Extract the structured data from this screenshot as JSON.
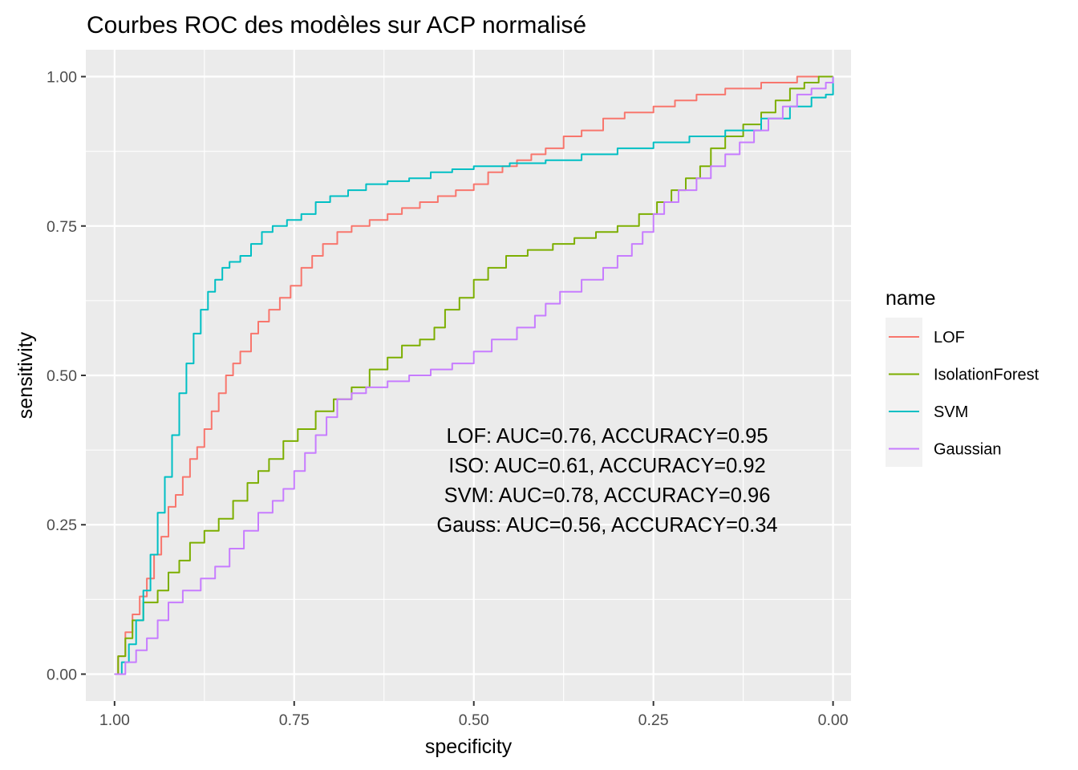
{
  "chart_data": {
    "type": "line",
    "title": "Courbes ROC des modèles sur ACP normalisé",
    "xlabel": "specificity",
    "ylabel": "sensitivity",
    "x_reversed": true,
    "xlim": [
      1.04,
      -0.025
    ],
    "ylim": [
      -0.045,
      1.045
    ],
    "x_ticks": [
      1.0,
      0.75,
      0.5,
      0.25,
      0.0
    ],
    "x_tick_labels": [
      "1.00",
      "0.75",
      "0.50",
      "0.25",
      "0.00"
    ],
    "y_ticks": [
      0.0,
      0.25,
      0.5,
      0.75,
      1.0
    ],
    "y_tick_labels": [
      "0.00",
      "0.25",
      "0.50",
      "0.75",
      "1.00"
    ],
    "grid": true,
    "legend": {
      "title": "name",
      "position": "right"
    },
    "annotations": [
      "LOF: AUC=0.76, ACCURACY=0.95",
      "ISO: AUC=0.61, ACCURACY=0.92",
      "SVM: AUC=0.78, ACCURACY=0.96",
      "Gauss: AUC=0.56, ACCURACY=0.34"
    ],
    "series": [
      {
        "name": "LOF",
        "color": "#F8766D",
        "points": [
          [
            1.0,
            0.0
          ],
          [
            0.995,
            0.03
          ],
          [
            0.985,
            0.07
          ],
          [
            0.975,
            0.1
          ],
          [
            0.965,
            0.13
          ],
          [
            0.955,
            0.16
          ],
          [
            0.945,
            0.2
          ],
          [
            0.935,
            0.23
          ],
          [
            0.925,
            0.28
          ],
          [
            0.915,
            0.3
          ],
          [
            0.905,
            0.33
          ],
          [
            0.895,
            0.36
          ],
          [
            0.885,
            0.38
          ],
          [
            0.875,
            0.41
          ],
          [
            0.865,
            0.44
          ],
          [
            0.855,
            0.47
          ],
          [
            0.845,
            0.5
          ],
          [
            0.835,
            0.52
          ],
          [
            0.825,
            0.54
          ],
          [
            0.81,
            0.57
          ],
          [
            0.8,
            0.59
          ],
          [
            0.785,
            0.61
          ],
          [
            0.77,
            0.63
          ],
          [
            0.755,
            0.65
          ],
          [
            0.74,
            0.68
          ],
          [
            0.725,
            0.7
          ],
          [
            0.71,
            0.72
          ],
          [
            0.69,
            0.74
          ],
          [
            0.67,
            0.75
          ],
          [
            0.645,
            0.76
          ],
          [
            0.62,
            0.77
          ],
          [
            0.6,
            0.78
          ],
          [
            0.575,
            0.79
          ],
          [
            0.55,
            0.8
          ],
          [
            0.525,
            0.81
          ],
          [
            0.5,
            0.82
          ],
          [
            0.48,
            0.84
          ],
          [
            0.46,
            0.85
          ],
          [
            0.44,
            0.86
          ],
          [
            0.42,
            0.87
          ],
          [
            0.4,
            0.88
          ],
          [
            0.375,
            0.9
          ],
          [
            0.35,
            0.91
          ],
          [
            0.32,
            0.93
          ],
          [
            0.29,
            0.94
          ],
          [
            0.25,
            0.95
          ],
          [
            0.22,
            0.96
          ],
          [
            0.19,
            0.97
          ],
          [
            0.15,
            0.98
          ],
          [
            0.1,
            0.99
          ],
          [
            0.05,
            1.0
          ],
          [
            0.0,
            1.0
          ]
        ]
      },
      {
        "name": "IsolationForest",
        "color": "#7CAE00",
        "points": [
          [
            1.0,
            0.0
          ],
          [
            0.995,
            0.03
          ],
          [
            0.985,
            0.06
          ],
          [
            0.975,
            0.09
          ],
          [
            0.96,
            0.12
          ],
          [
            0.94,
            0.14
          ],
          [
            0.925,
            0.17
          ],
          [
            0.91,
            0.19
          ],
          [
            0.895,
            0.22
          ],
          [
            0.875,
            0.24
          ],
          [
            0.855,
            0.26
          ],
          [
            0.835,
            0.29
          ],
          [
            0.815,
            0.32
          ],
          [
            0.8,
            0.34
          ],
          [
            0.785,
            0.36
          ],
          [
            0.765,
            0.39
          ],
          [
            0.745,
            0.41
          ],
          [
            0.72,
            0.44
          ],
          [
            0.695,
            0.46
          ],
          [
            0.67,
            0.48
          ],
          [
            0.645,
            0.51
          ],
          [
            0.62,
            0.53
          ],
          [
            0.6,
            0.55
          ],
          [
            0.575,
            0.56
          ],
          [
            0.555,
            0.58
          ],
          [
            0.54,
            0.61
          ],
          [
            0.52,
            0.63
          ],
          [
            0.5,
            0.66
          ],
          [
            0.48,
            0.68
          ],
          [
            0.455,
            0.7
          ],
          [
            0.425,
            0.71
          ],
          [
            0.39,
            0.72
          ],
          [
            0.36,
            0.73
          ],
          [
            0.33,
            0.74
          ],
          [
            0.3,
            0.75
          ],
          [
            0.27,
            0.77
          ],
          [
            0.245,
            0.79
          ],
          [
            0.225,
            0.81
          ],
          [
            0.205,
            0.83
          ],
          [
            0.185,
            0.85
          ],
          [
            0.17,
            0.88
          ],
          [
            0.15,
            0.9
          ],
          [
            0.125,
            0.92
          ],
          [
            0.1,
            0.94
          ],
          [
            0.08,
            0.96
          ],
          [
            0.06,
            0.98
          ],
          [
            0.04,
            0.99
          ],
          [
            0.02,
            1.0
          ],
          [
            0.0,
            1.0
          ]
        ]
      },
      {
        "name": "SVM",
        "color": "#00BFC4",
        "points": [
          [
            1.0,
            0.0
          ],
          [
            0.99,
            0.02
          ],
          [
            0.98,
            0.05
          ],
          [
            0.97,
            0.09
          ],
          [
            0.96,
            0.14
          ],
          [
            0.95,
            0.2
          ],
          [
            0.94,
            0.27
          ],
          [
            0.93,
            0.33
          ],
          [
            0.92,
            0.4
          ],
          [
            0.91,
            0.47
          ],
          [
            0.9,
            0.52
          ],
          [
            0.89,
            0.57
          ],
          [
            0.88,
            0.61
          ],
          [
            0.87,
            0.64
          ],
          [
            0.86,
            0.66
          ],
          [
            0.85,
            0.68
          ],
          [
            0.84,
            0.69
          ],
          [
            0.825,
            0.7
          ],
          [
            0.81,
            0.72
          ],
          [
            0.795,
            0.74
          ],
          [
            0.78,
            0.75
          ],
          [
            0.76,
            0.76
          ],
          [
            0.74,
            0.77
          ],
          [
            0.72,
            0.79
          ],
          [
            0.7,
            0.8
          ],
          [
            0.675,
            0.81
          ],
          [
            0.65,
            0.82
          ],
          [
            0.62,
            0.825
          ],
          [
            0.59,
            0.83
          ],
          [
            0.56,
            0.84
          ],
          [
            0.53,
            0.845
          ],
          [
            0.5,
            0.85
          ],
          [
            0.45,
            0.855
          ],
          [
            0.4,
            0.86
          ],
          [
            0.35,
            0.87
          ],
          [
            0.3,
            0.88
          ],
          [
            0.25,
            0.89
          ],
          [
            0.2,
            0.9
          ],
          [
            0.15,
            0.91
          ],
          [
            0.1,
            0.93
          ],
          [
            0.06,
            0.95
          ],
          [
            0.03,
            0.965
          ],
          [
            0.01,
            0.97
          ],
          [
            0.0,
            0.98
          ],
          [
            0.0,
            1.0
          ]
        ]
      },
      {
        "name": "Gaussian",
        "color": "#C77CFF",
        "points": [
          [
            1.0,
            0.0
          ],
          [
            0.985,
            0.02
          ],
          [
            0.97,
            0.04
          ],
          [
            0.955,
            0.06
          ],
          [
            0.94,
            0.09
          ],
          [
            0.925,
            0.12
          ],
          [
            0.905,
            0.14
          ],
          [
            0.88,
            0.16
          ],
          [
            0.86,
            0.18
          ],
          [
            0.84,
            0.21
          ],
          [
            0.82,
            0.24
          ],
          [
            0.8,
            0.27
          ],
          [
            0.78,
            0.29
          ],
          [
            0.765,
            0.31
          ],
          [
            0.75,
            0.34
          ],
          [
            0.735,
            0.37
          ],
          [
            0.72,
            0.4
          ],
          [
            0.705,
            0.43
          ],
          [
            0.69,
            0.46
          ],
          [
            0.67,
            0.47
          ],
          [
            0.65,
            0.48
          ],
          [
            0.62,
            0.49
          ],
          [
            0.59,
            0.5
          ],
          [
            0.56,
            0.51
          ],
          [
            0.53,
            0.52
          ],
          [
            0.5,
            0.54
          ],
          [
            0.475,
            0.56
          ],
          [
            0.44,
            0.58
          ],
          [
            0.415,
            0.6
          ],
          [
            0.4,
            0.62
          ],
          [
            0.38,
            0.64
          ],
          [
            0.35,
            0.66
          ],
          [
            0.32,
            0.68
          ],
          [
            0.3,
            0.7
          ],
          [
            0.28,
            0.72
          ],
          [
            0.265,
            0.74
          ],
          [
            0.25,
            0.77
          ],
          [
            0.235,
            0.79
          ],
          [
            0.215,
            0.81
          ],
          [
            0.19,
            0.83
          ],
          [
            0.17,
            0.85
          ],
          [
            0.15,
            0.87
          ],
          [
            0.13,
            0.89
          ],
          [
            0.11,
            0.91
          ],
          [
            0.09,
            0.93
          ],
          [
            0.07,
            0.95
          ],
          [
            0.05,
            0.97
          ],
          [
            0.03,
            0.98
          ],
          [
            0.01,
            0.99
          ],
          [
            0.0,
            1.0
          ]
        ]
      }
    ]
  }
}
